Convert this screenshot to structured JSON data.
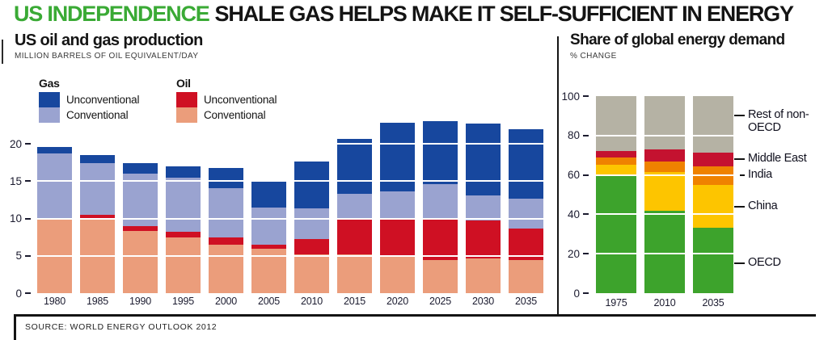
{
  "header": {
    "highlight": "US INDEPENDENCE",
    "title": "SHALE GAS HELPS MAKE IT SELF-SUFFICIENT IN ENERGY"
  },
  "colors": {
    "headline_green": "#3aaa35",
    "gas_unconventional": "#17479e",
    "gas_conventional": "#9aa3d0",
    "oil_unconventional": "#cf1023",
    "oil_conventional": "#eb9d7b",
    "oecd_green": "#3da32c",
    "china_yellow": "#fdc500",
    "india_orange": "#ef8200",
    "middle_east_red": "#c41230",
    "rest_of_non_oecd_gray": "#b5b2a4",
    "gridline_white": "#ffffff",
    "rule_black": "#141414"
  },
  "legend": {
    "gas_title": "Gas",
    "oil_title": "Oil",
    "unconventional": "Unconventional",
    "conventional": "Conventional"
  },
  "chart_data": [
    {
      "type": "bar",
      "stacked": true,
      "title": "US oil and gas production",
      "subtitle": "MILLION BARRELS OF OIL EQUIVALENT/DAY",
      "ylabel": "Million barrels of oil equivalent/day",
      "categories": [
        "1980",
        "1985",
        "1990",
        "1995",
        "2000",
        "2005",
        "2010",
        "2015",
        "2020",
        "2025",
        "2030",
        "2035"
      ],
      "series": [
        {
          "name": "Oil conventional",
          "group": "Oil",
          "label": "Conventional",
          "color": "#eb9d7b",
          "values": [
            10.0,
            9.9,
            8.3,
            7.5,
            6.5,
            5.9,
            5.2,
            5.2,
            5.0,
            4.4,
            4.6,
            4.4
          ]
        },
        {
          "name": "Oil unconventional",
          "group": "Oil",
          "label": "Unconventional",
          "color": "#cf1023",
          "values": [
            0.0,
            0.6,
            0.7,
            0.7,
            1.0,
            0.6,
            2.0,
            4.9,
            5.0,
            5.6,
            5.1,
            4.2
          ]
        },
        {
          "name": "Gas conventional",
          "group": "Gas",
          "label": "Conventional",
          "color": "#9aa3d0",
          "values": [
            8.7,
            6.9,
            7.0,
            7.3,
            6.6,
            5.0,
            4.2,
            3.2,
            3.6,
            4.6,
            3.4,
            4.1
          ]
        },
        {
          "name": "Gas unconventional",
          "group": "Gas",
          "label": "Unconventional",
          "color": "#17479e",
          "values": [
            0.9,
            1.1,
            1.4,
            1.5,
            2.7,
            3.5,
            6.2,
            7.4,
            9.2,
            8.4,
            9.6,
            9.2
          ]
        }
      ],
      "ylim": [
        0,
        23.2
      ],
      "yticks": [
        0,
        5,
        10,
        15,
        20
      ],
      "grid": "white overlay lines at yticks",
      "legend_position": "top-left"
    },
    {
      "type": "bar",
      "stacked": true,
      "unit": "%",
      "title": "Share of global energy demand",
      "subtitle": "% CHANGE",
      "categories": [
        "1975",
        "2010",
        "2035"
      ],
      "series": [
        {
          "name": "OECD",
          "color": "#3da32c",
          "values": [
            60.0,
            42.0,
            33.0
          ],
          "label_value": 15
        },
        {
          "name": "China",
          "color": "#fdc500",
          "values": [
            5.0,
            19.5,
            22.0
          ],
          "label_value": 44
        },
        {
          "name": "India",
          "color": "#ef8200",
          "values": [
            4.0,
            5.5,
            9.5
          ],
          "label_value": 60
        },
        {
          "name": "Middle East",
          "color": "#c41230",
          "values": [
            3.0,
            6.0,
            7.0
          ],
          "label_value": 68
        },
        {
          "name": "Rest of non-OECD",
          "color": "#b5b2a4",
          "values": [
            28.0,
            27.0,
            28.5
          ],
          "label_value": 90
        }
      ],
      "ylim": [
        0,
        100
      ],
      "yticks": [
        0,
        20,
        40,
        60,
        80,
        100
      ],
      "grid": "white overlay lines at yticks",
      "labels_position": "right"
    }
  ],
  "source": {
    "label": "SOURCE: WORLD ENERGY OUTLOOK 2012"
  }
}
